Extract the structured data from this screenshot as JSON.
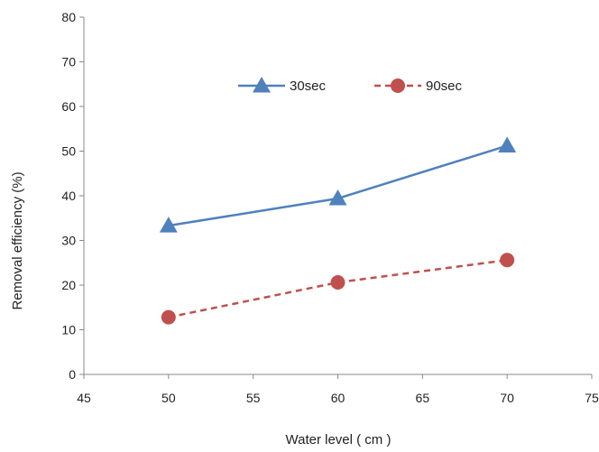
{
  "chart_data": {
    "type": "line",
    "xlabel": "Water level ( cm )",
    "ylabel": "Removal efficiency  (%)",
    "xlim": [
      45,
      75
    ],
    "ylim": [
      0,
      80
    ],
    "xticks": [
      "45",
      "50",
      "55",
      "60",
      "65",
      "70",
      "75"
    ],
    "yticks": [
      "0",
      "10",
      "20",
      "30",
      "40",
      "50",
      "60",
      "70",
      "80"
    ],
    "grid": false,
    "legend_placement": "top-center",
    "series": [
      {
        "name": "30sec",
        "x": [
          50,
          60,
          70
        ],
        "y": [
          33.3,
          39.4,
          51.2
        ],
        "color": "#4F81BD",
        "line_style": "solid",
        "marker": "triangle"
      },
      {
        "name": "90sec",
        "x": [
          50,
          60,
          70
        ],
        "y": [
          12.8,
          20.6,
          25.6
        ],
        "color": "#C0504D",
        "line_style": "dashed",
        "marker": "circle"
      }
    ]
  }
}
